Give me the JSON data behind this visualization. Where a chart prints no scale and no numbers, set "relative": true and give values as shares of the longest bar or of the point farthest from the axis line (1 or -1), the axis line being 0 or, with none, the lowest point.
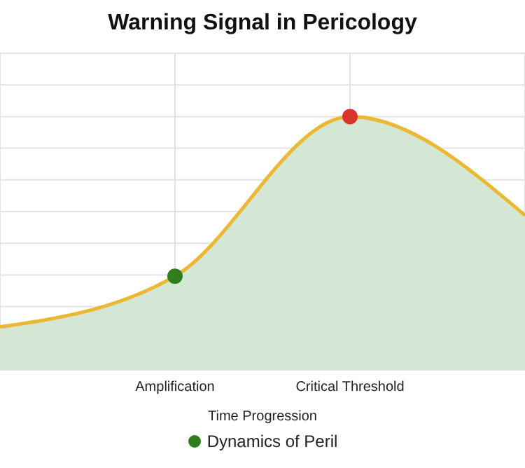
{
  "chart_data": {
    "type": "area",
    "title": "Warning Signal in Pericology",
    "xlabel": "Time Progression",
    "categories": [
      null,
      "Amplification",
      "Critical Threshold",
      null
    ],
    "relative": true,
    "series": [
      {
        "name": "Dynamics of Peril",
        "color": "#ecb731",
        "colors": [
          null,
          "#2f7d1e",
          "#d8342a",
          null
        ],
        "values": [
          0.17,
          0.37,
          1,
          0.61
        ]
      }
    ],
    "grid": true,
    "legend": "bottom",
    "marker": "circle"
  }
}
